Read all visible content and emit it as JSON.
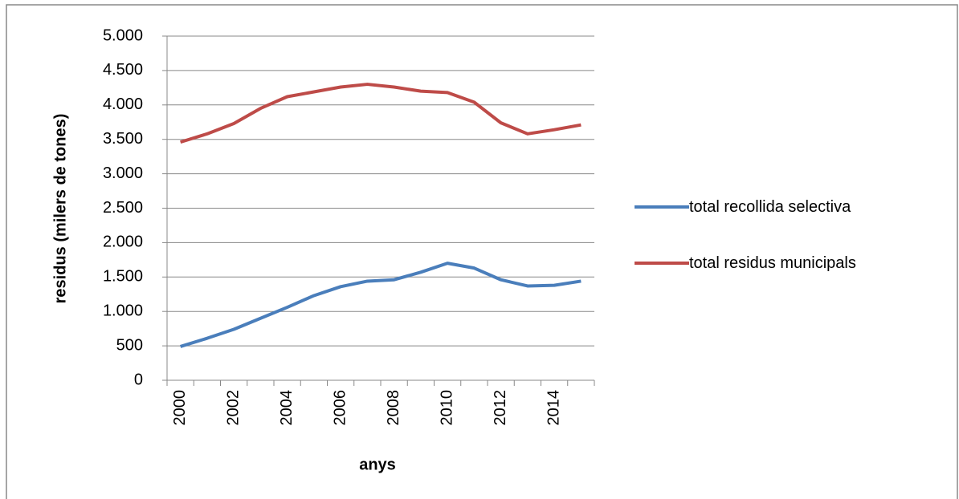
{
  "chart_data": {
    "type": "line",
    "x_label": "anys",
    "y_label": "residus (milers de tones)",
    "categories": [
      "2000",
      null,
      "2002",
      null,
      "2004",
      null,
      "2006",
      null,
      "2008",
      null,
      "2010",
      null,
      "2012",
      null,
      "2014",
      null
    ],
    "series": [
      {
        "name": "total recollida selectiva",
        "color": "#4a7ebb",
        "values": [
          490,
          610,
          740,
          900,
          1060,
          1230,
          1360,
          1440,
          1460,
          1570,
          1700,
          1630,
          1460,
          1370,
          1380,
          1440
        ]
      },
      {
        "name": "total residus municipals",
        "color": "#be4b48",
        "values": [
          3460,
          3580,
          3730,
          3950,
          4120,
          4190,
          4260,
          4300,
          4260,
          4200,
          4180,
          4040,
          3740,
          3580,
          3640,
          3710
        ]
      }
    ],
    "ylim": [
      0,
      5000
    ],
    "yticks": [
      0,
      500,
      {
        "value": 1000,
        "label": "1.000"
      },
      {
        "value": 1500,
        "label": "1.500"
      },
      {
        "value": 2000,
        "label": "2.000"
      },
      {
        "value": 2500,
        "label": "2.500"
      },
      {
        "value": 3000,
        "label": "3.000"
      },
      {
        "value": 3500,
        "label": "3.500"
      },
      {
        "value": 4000,
        "label": "4.000"
      },
      {
        "value": 4500,
        "label": "4.500"
      },
      {
        "value": 5000,
        "label": "5.000"
      }
    ],
    "grid": true
  }
}
